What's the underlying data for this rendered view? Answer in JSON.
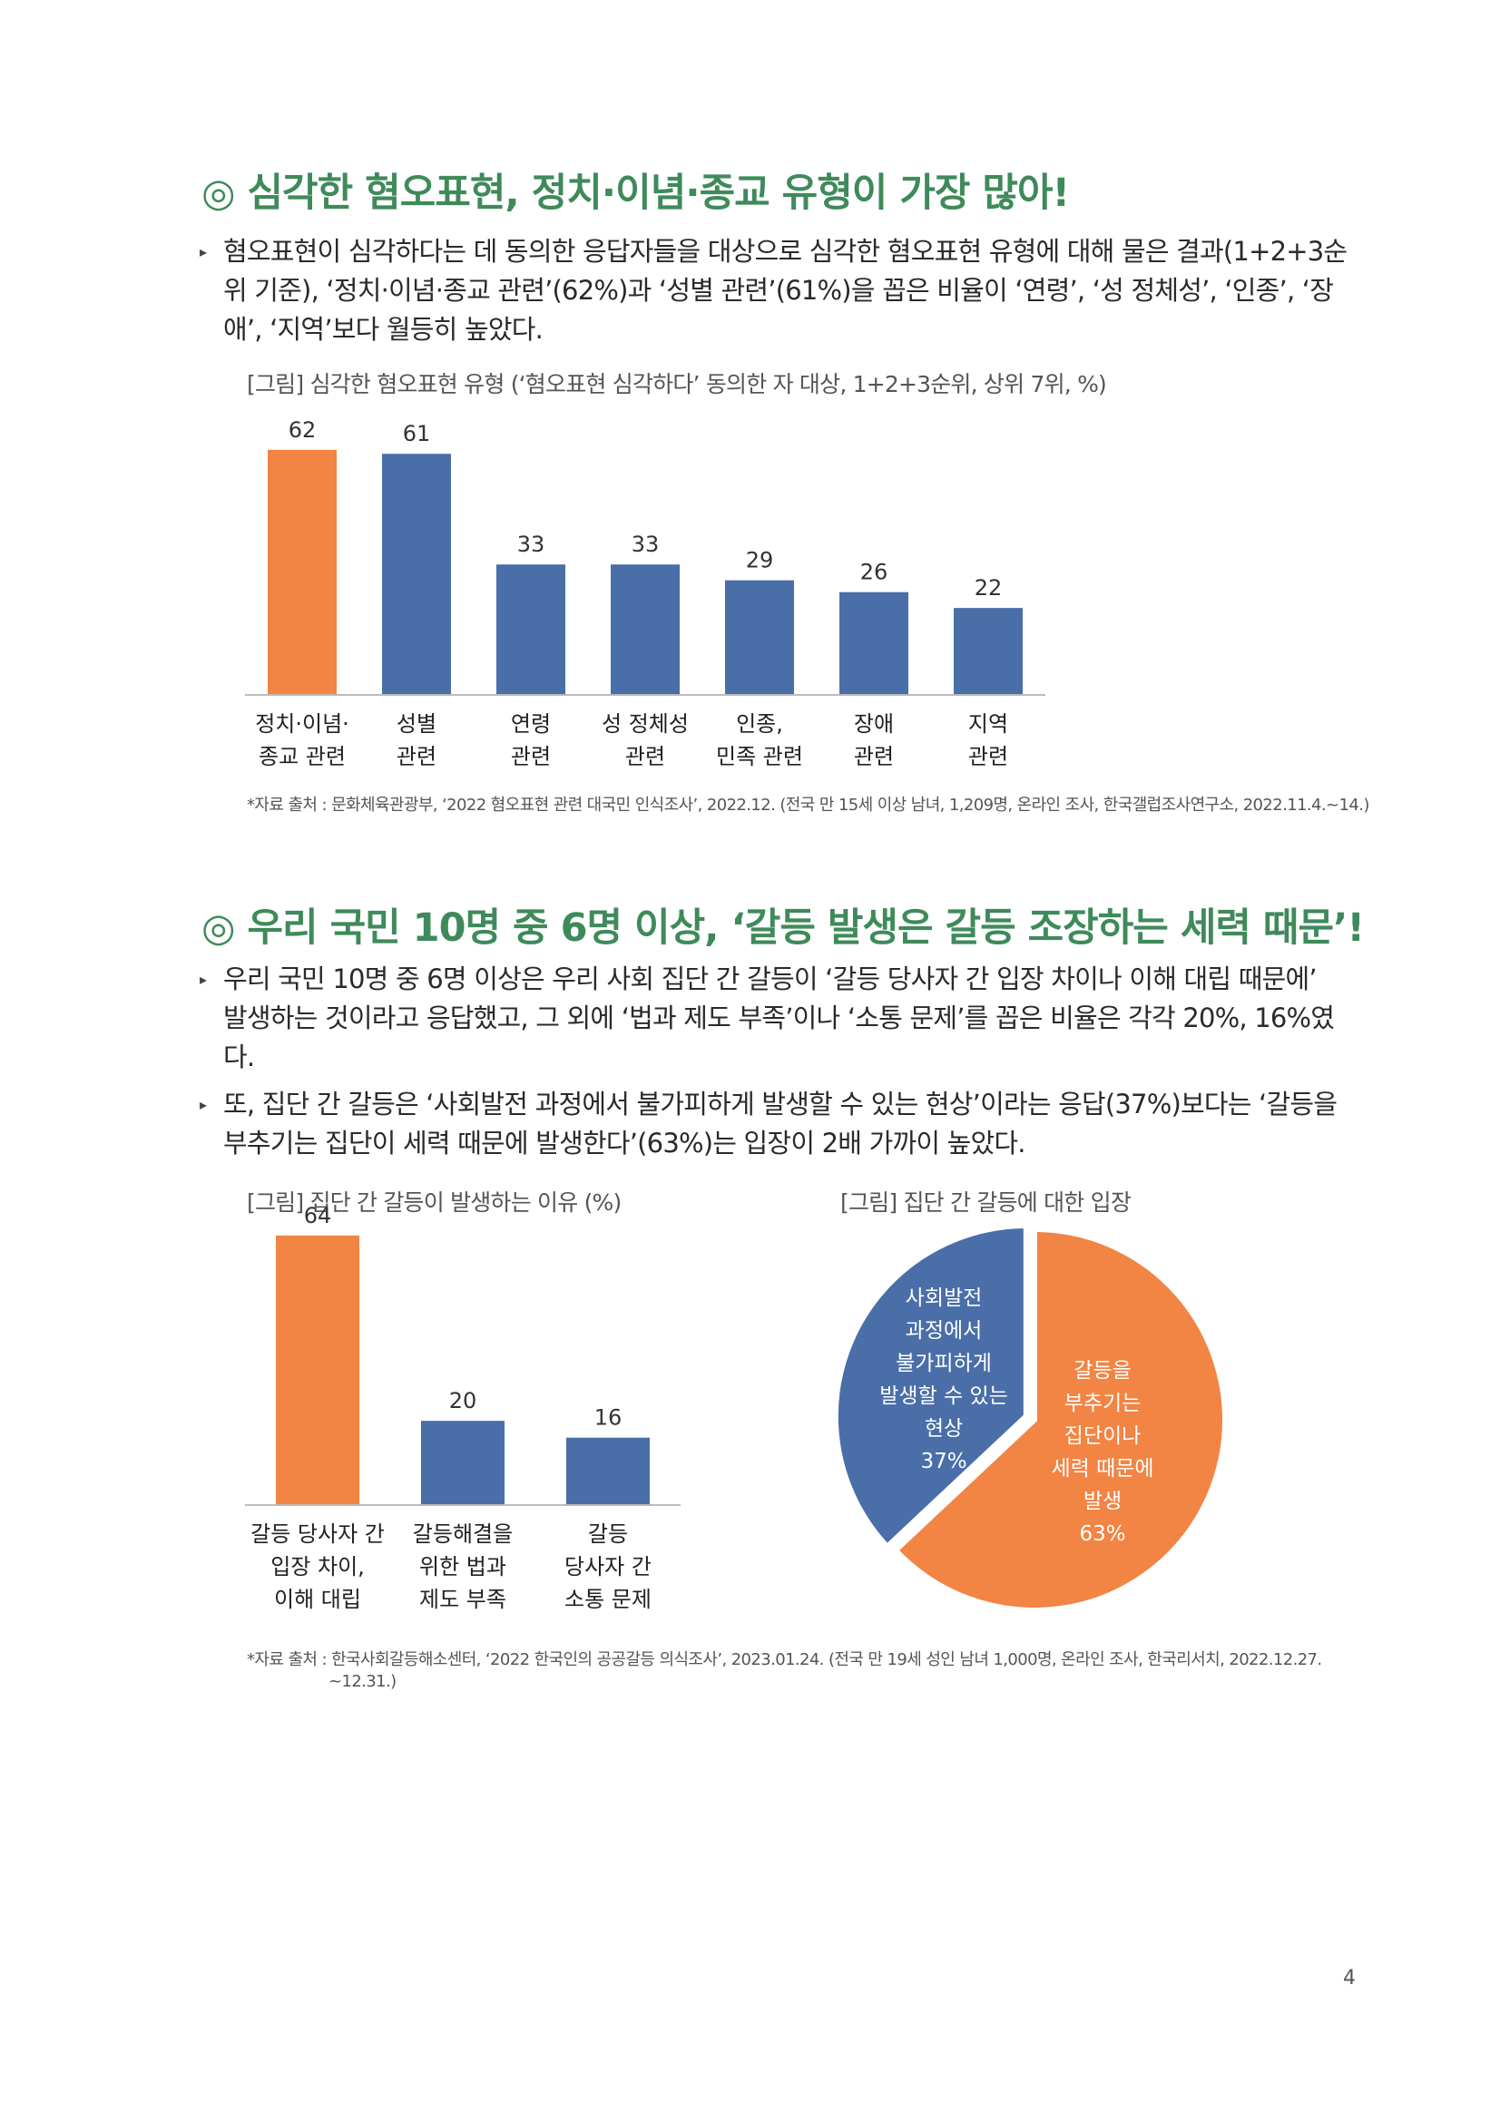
{
  "section1": {
    "heading": "◎ 심각한 혐오표현, 정치·이념·종교 유형이 가장 많아!",
    "bullet_lines": [
      "혐오표현이 심각하다는 데 동의한 응답자들을 대상으로 심각한 혐오표현 유형에 대해 물은 결과(1+2+3순",
      "위 기준), ‘정치·이념·종교 관련’(62%)과 ‘성별 관련’(61%)을 꼽은 비율이 ‘연령’, ‘성 정체성’, ‘인종’, ‘장",
      "애’, ‘지역’보다 월등히 높았다."
    ],
    "figure_caption": "[그림] 심각한 혐오표현 유형 (‘혐오표현 심각하다’ 동의한 자 대상, 1+2+3순위, 상위 7위, %)",
    "source": "*자료 출처 : 문화체육관광부, ‘2022 혐오표현 관련 대국민 인식조사’, 2022.12. (전국 만 15세 이상 남녀, 1,209명, 온라인 조사, 한국갤럽조사연구소, 2022.11.4.~14.)"
  },
  "section2": {
    "heading": "◎ 우리 국민 10명 중 6명 이상, ‘갈등 발생은 갈등 조장하는 세력 때문’!",
    "bullet1_lines": [
      "우리 국민 10명 중 6명 이상은 우리 사회 집단 간 갈등이 ‘갈등 당사자 간 입장 차이나 이해 대립 때문에’",
      "발생하는 것이라고 응답했고, 그 외에 ‘법과 제도 부족’이나 ‘소통 문제’를 꼽은 비율은 각각 20%, 16%였",
      "다."
    ],
    "bullet2_lines": [
      "또, 집단 간 갈등은 ‘사회발전 과정에서 불가피하게 발생할 수 있는 현상’이라는 응답(37%)보다는 ‘갈등을",
      "부추기는 집단이 세력 때문에 발생한다’(63%)는 입장이 2배 가까이 높았다."
    ],
    "figure1_caption": "[그림] 집단 간 갈등이 발생하는 이유 (%)",
    "figure2_caption": "[그림] 집단 간 갈등에 대한 입장",
    "source_lines": [
      "*자료 출처 : 한국사회갈등해소센터, ‘2022 한국인의 공공갈등 의식조사’, 2023.01.24. (전국 만 19세 성인 남녀 1,000명, 온라인 조사, 한국리서치, 2022.12.27.",
      "~12.31.)"
    ]
  },
  "page_number": "4",
  "colors": {
    "highlight": "#f28444",
    "bar": "#4a6ea8",
    "heading": "#3f8a5a"
  },
  "chart_data": [
    {
      "type": "bar",
      "categories": [
        [
          "정치·이념·",
          "종교 관련"
        ],
        [
          "성별",
          "관련"
        ],
        [
          "연령",
          "관련"
        ],
        [
          "성 정체성",
          "관련"
        ],
        [
          "인종,",
          "민족 관련"
        ],
        [
          "장애",
          "관련"
        ],
        [
          "지역",
          "관련"
        ]
      ],
      "values": [
        62,
        61,
        33,
        33,
        29,
        26,
        22
      ],
      "highlight_index": 0,
      "ylim": [
        0,
        70
      ]
    },
    {
      "type": "bar",
      "categories": [
        [
          "갈등 당사자 간",
          "입장 차이,",
          "이해 대립"
        ],
        [
          "갈등해결을",
          "위한 법과",
          "제도 부족"
        ],
        [
          "갈등",
          "당사자 간",
          "소통 문제"
        ]
      ],
      "values": [
        64,
        20,
        16
      ],
      "highlight_index": 0,
      "ylim": [
        0,
        70
      ]
    },
    {
      "type": "pie",
      "slices": [
        {
          "label_lines": [
            "사회발전",
            "과정에서",
            "불가피하게",
            "발생할 수 있는",
            "현상",
            "37%"
          ],
          "value": 37,
          "color": "#4a6ea8"
        },
        {
          "label_lines": [
            "갈등을",
            "부추기는",
            "집단이나",
            "세력 때문에",
            "발생",
            "63%"
          ],
          "value": 63,
          "color": "#f28444"
        }
      ]
    }
  ]
}
